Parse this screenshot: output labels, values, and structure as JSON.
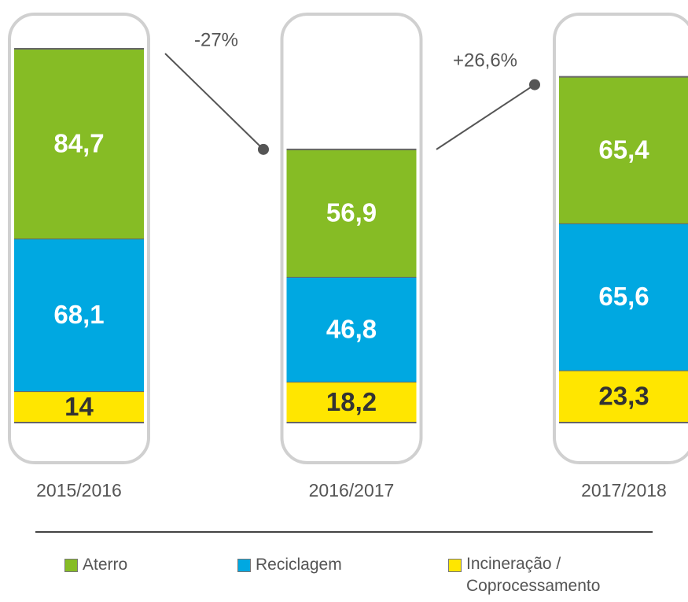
{
  "chart_data": {
    "type": "stacked_bar",
    "categories": [
      "2015/2016",
      "2016/2017",
      "2017/2018"
    ],
    "series": [
      {
        "name": "Aterro",
        "color": "#86bc25",
        "values": [
          84.7,
          56.9,
          65.4
        ],
        "value_labels": [
          "84,7",
          "56,9",
          "65,4"
        ]
      },
      {
        "name": "Reciclagem",
        "color": "#00a8e1",
        "values": [
          68.1,
          46.8,
          65.6
        ],
        "value_labels": [
          "68,1",
          "46,8",
          "65,6"
        ]
      },
      {
        "name": "Incineração / Coprocessamento",
        "color": "#ffe600",
        "values": [
          14,
          18.2,
          23.3
        ],
        "value_labels": [
          "14",
          "18,2",
          "23,3"
        ]
      }
    ],
    "annotations": [
      "-27%",
      "+26,6%"
    ]
  }
}
